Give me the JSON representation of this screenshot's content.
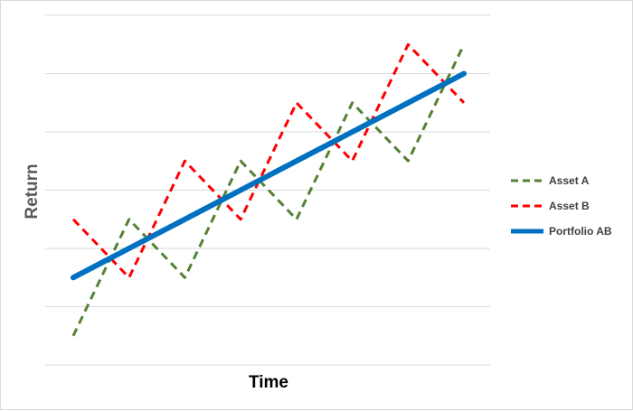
{
  "chart_data": {
    "type": "line",
    "title": "",
    "xlabel": "Time",
    "ylabel": "Return",
    "x": [
      0,
      1,
      2,
      3,
      4,
      5,
      6,
      7
    ],
    "xlim": [
      0,
      7
    ],
    "ylim": [
      0,
      6
    ],
    "grid": true,
    "legend_position": "right",
    "series": [
      {
        "name": "Asset A",
        "values": [
          0.5,
          2.5,
          1.5,
          3.5,
          2.5,
          4.5,
          3.5,
          5.5
        ],
        "color": "#548235",
        "style": "dashed"
      },
      {
        "name": "Asset B",
        "values": [
          2.5,
          1.5,
          3.5,
          2.5,
          4.5,
          3.5,
          5.5,
          4.5
        ],
        "color": "#ff0000",
        "style": "dashed"
      },
      {
        "name": "Portfolio AB",
        "values": [
          1.5,
          2.0,
          2.5,
          3.0,
          3.5,
          4.0,
          4.5,
          5.0
        ],
        "color": "#0070c0",
        "style": "solid"
      }
    ]
  }
}
